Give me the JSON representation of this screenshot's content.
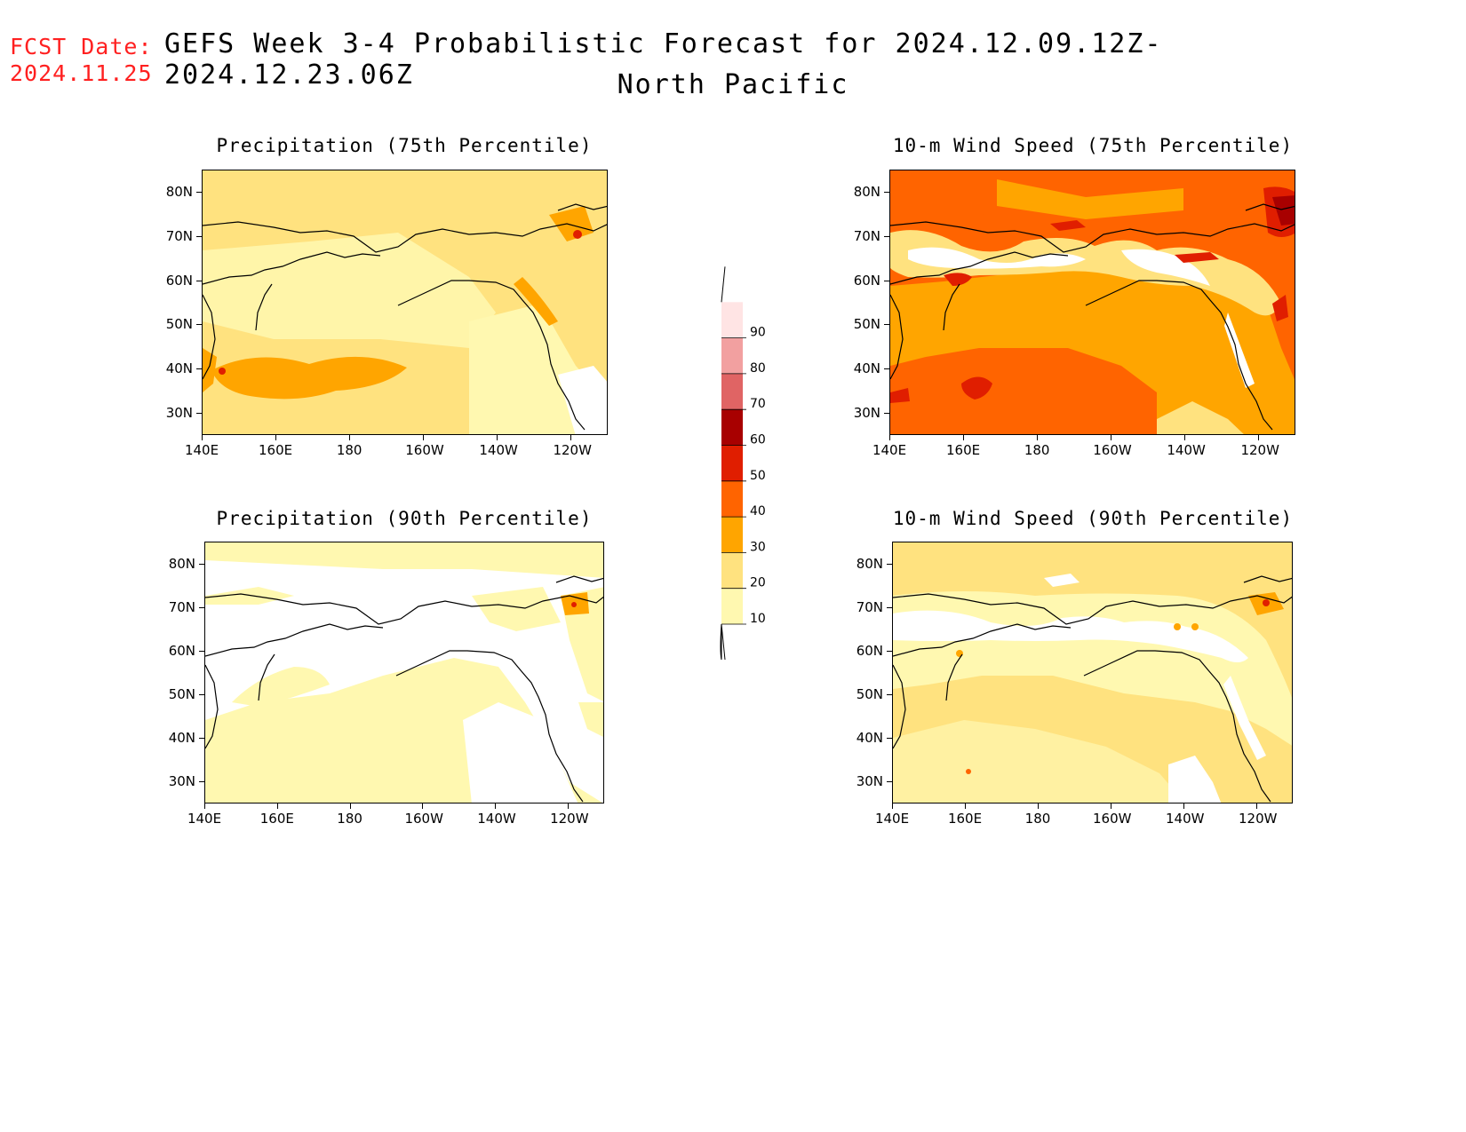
{
  "header": {
    "fcst_label": "FCST Date:",
    "fcst_date": "2024.11.25",
    "title": "GEFS Week 3-4 Probabilistic Forecast for 2024.12.09.12Z-2024.12.23.06Z",
    "subtitle": "North Pacific"
  },
  "axes": {
    "x_ticks": [
      "140E",
      "160E",
      "180",
      "160W",
      "140W",
      "120W"
    ],
    "y_ticks": [
      "80N",
      "70N",
      "60N",
      "50N",
      "40N",
      "30N"
    ]
  },
  "panels": [
    {
      "id": "precip75",
      "title": "Precipitation (75th Percentile)",
      "field": "precipitation",
      "percentile": 75,
      "base_level": 20
    },
    {
      "id": "wind75",
      "title": "10-m Wind Speed (75th Percentile)",
      "field": "10m_wind_speed",
      "percentile": 75,
      "base_level": 40
    },
    {
      "id": "precip90",
      "title": "Precipitation (90th Percentile)",
      "field": "precipitation",
      "percentile": 90,
      "base_level": 10
    },
    {
      "id": "wind90",
      "title": "10-m Wind Speed (90th Percentile)",
      "field": "10m_wind_speed",
      "percentile": 90,
      "base_level": 20
    }
  ],
  "colorbar": {
    "levels": [
      "10",
      "20",
      "30",
      "40",
      "50",
      "60",
      "70",
      "80",
      "90"
    ],
    "colors": [
      "#fff8b0",
      "#ffe27f",
      "#ffa500",
      "#ff6400",
      "#e01e00",
      "#a80000",
      "#e06464",
      "#f2a0a0",
      "#ffe4e4"
    ]
  }
}
